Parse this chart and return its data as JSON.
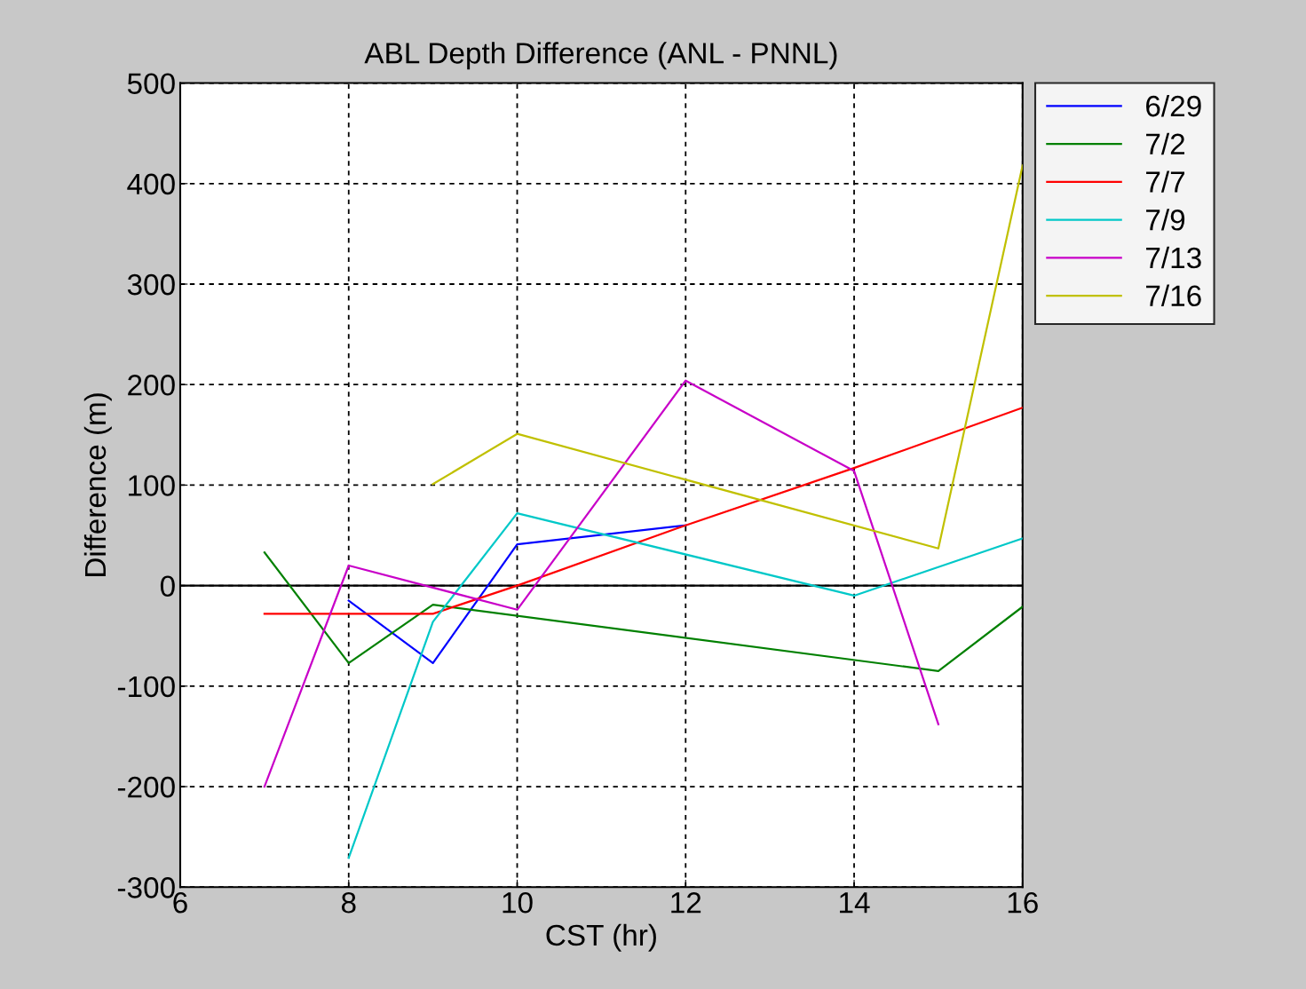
{
  "chart_data": {
    "type": "line",
    "title": "ABL Depth Difference (ANL - PNNL)",
    "xlabel": "CST (hr)",
    "ylabel": "Difference (m)",
    "xlim": [
      6,
      16
    ],
    "xticks": [
      6,
      8,
      10,
      12,
      14,
      16
    ],
    "ylim": [
      -300,
      500
    ],
    "yticks": [
      -300,
      -200,
      -100,
      0,
      100,
      200,
      300,
      400,
      500
    ],
    "grid": true,
    "legend": "top right",
    "marker": "none",
    "line_style": "solid",
    "ref_lines": [
      {
        "axis": "y",
        "value": 0,
        "color": "#000000",
        "line_style": "solid"
      }
    ],
    "series": [
      {
        "name": "6/29",
        "color": "#0000ff",
        "x": [
          8,
          9,
          10,
          12
        ],
        "values": [
          -15,
          -77,
          41,
          60
        ]
      },
      {
        "name": "7/2",
        "color": "#008000",
        "x": [
          7,
          8,
          9,
          15,
          16
        ],
        "values": [
          33,
          -77,
          -19,
          -85,
          -21
        ]
      },
      {
        "name": "7/7",
        "color": "#ff0000",
        "x": [
          7,
          8,
          9,
          10,
          12,
          14,
          16
        ],
        "values": [
          -28,
          -28,
          -28,
          0,
          60,
          117,
          177
        ]
      },
      {
        "name": "7/9",
        "color": "#00c8c8",
        "x": [
          8,
          9,
          10,
          14,
          16
        ],
        "values": [
          -271,
          -36,
          72,
          -10,
          47
        ]
      },
      {
        "name": "7/13",
        "color": "#c800c8",
        "x": [
          7,
          8,
          10,
          12,
          14,
          15
        ],
        "values": [
          -200,
          20,
          -24,
          204,
          114,
          -138
        ]
      },
      {
        "name": "7/16",
        "color": "#c0c000",
        "x": [
          9,
          10,
          15,
          16
        ],
        "values": [
          101,
          151,
          37,
          418
        ]
      }
    ]
  }
}
